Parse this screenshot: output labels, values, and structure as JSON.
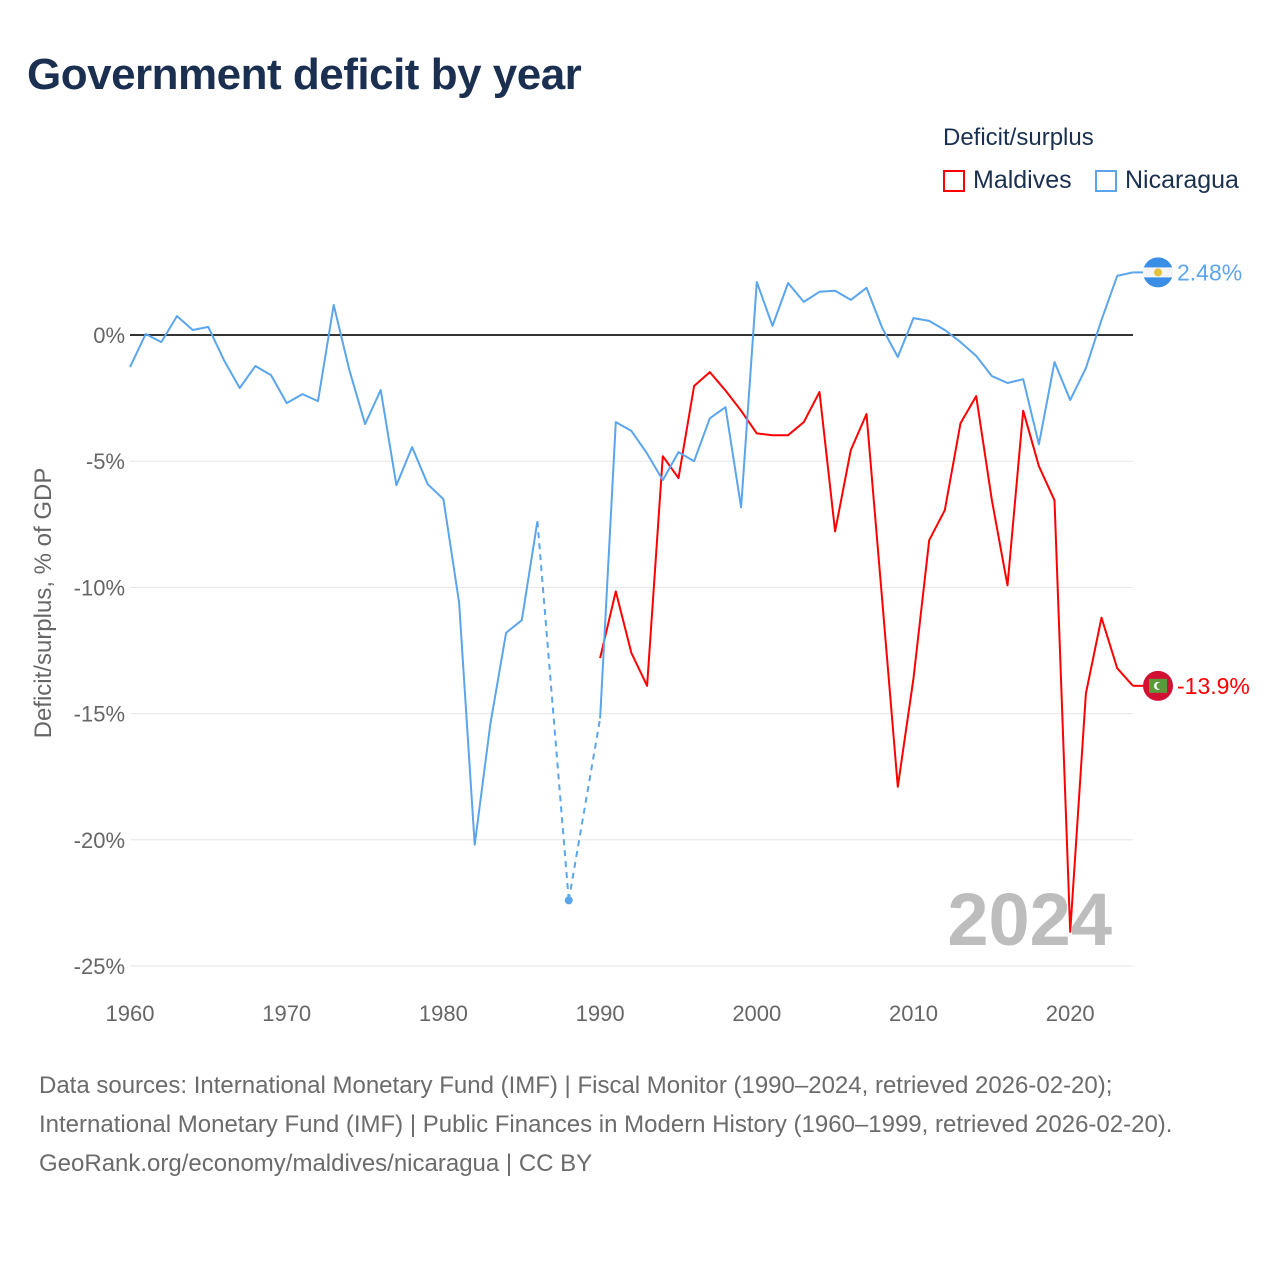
{
  "chart_data": {
    "type": "line",
    "title": "Government deficit by year",
    "ylabel": "Deficit/surplus, % of GDP",
    "xlabel": "",
    "legend_title": "Deficit/surplus",
    "legend_position": "top-right",
    "xlim": [
      1960,
      2024
    ],
    "ylim": [
      -25,
      3
    ],
    "x_ticks": [
      1960,
      1970,
      1980,
      1990,
      2000,
      2010,
      2020
    ],
    "x_tick_labels": [
      "1960",
      "1970",
      "1980",
      "1990",
      "2000",
      "2010",
      "2020"
    ],
    "y_ticks": [
      0,
      -5,
      -10,
      -15,
      -20,
      -25
    ],
    "y_tick_labels": [
      "0%",
      "-5%",
      "-10%",
      "-15%",
      "-20%",
      "-25%"
    ],
    "grid": true,
    "year_watermark": "2024",
    "series": [
      {
        "name": "Maldives",
        "color": "#ff0000",
        "end_label": "-13.9%",
        "x": [
          1990,
          1991,
          1992,
          1993,
          1994,
          1995,
          1996,
          1997,
          1998,
          1999,
          2000,
          2001,
          2002,
          2003,
          2004,
          2005,
          2006,
          2007,
          2008,
          2009,
          2010,
          2011,
          2012,
          2013,
          2014,
          2015,
          2016,
          2017,
          2018,
          2019,
          2020,
          2021,
          2022,
          2023,
          2024
        ],
        "values": [
          -12.8,
          -10.16,
          -12.6,
          -13.9,
          -4.8,
          -5.67,
          -2.02,
          -1.47,
          -2.2,
          -3.0,
          -3.9,
          -3.97,
          -3.97,
          -3.45,
          -2.26,
          -7.78,
          -4.56,
          -3.13,
          -10.5,
          -17.9,
          -13.6,
          -8.13,
          -6.94,
          -3.5,
          -2.42,
          -6.55,
          -9.92,
          -3.0,
          -5.2,
          -6.55,
          -23.65,
          -14.2,
          -11.2,
          -13.2,
          -13.9
        ]
      },
      {
        "name": "Nicaragua",
        "color": "#5aa5ec",
        "end_label": "2.48%",
        "x": [
          1960,
          1961,
          1962,
          1963,
          1964,
          1965,
          1966,
          1967,
          1968,
          1969,
          1970,
          1971,
          1972,
          1973,
          1974,
          1975,
          1976,
          1977,
          1978,
          1979,
          1980,
          1981,
          1982,
          1983,
          1984,
          1985,
          1986,
          1987,
          1988,
          1989,
          1990,
          1991,
          1992,
          1993,
          1994,
          1995,
          1996,
          1997,
          1998,
          1999,
          2000,
          2001,
          2002,
          2003,
          2004,
          2005,
          2006,
          2007,
          2008,
          2009,
          2010,
          2011,
          2012,
          2013,
          2014,
          2015,
          2016,
          2017,
          2018,
          2019,
          2020,
          2021,
          2022,
          2023,
          2024
        ],
        "values": [
          -1.27,
          0.04,
          -0.28,
          0.75,
          0.2,
          0.32,
          -1.0,
          -2.1,
          -1.23,
          -1.59,
          -2.7,
          -2.34,
          -2.62,
          1.19,
          -1.39,
          -3.53,
          -2.18,
          -5.95,
          -4.44,
          -5.91,
          -6.5,
          -10.6,
          -20.2,
          -15.4,
          -11.8,
          -11.3,
          -7.38,
          null,
          -22.4,
          null,
          -15.2,
          -3.45,
          -3.8,
          -4.7,
          -5.75,
          -4.64,
          -5.0,
          -3.3,
          -2.86,
          -6.83,
          2.1,
          0.36,
          2.06,
          1.31,
          1.71,
          1.75,
          1.39,
          1.87,
          0.28,
          -0.87,
          0.67,
          0.56,
          0.2,
          -0.28,
          -0.83,
          -1.63,
          -1.9,
          -1.75,
          -4.33,
          -1.07,
          -2.58,
          -1.31,
          0.6,
          2.34,
          2.48
        ]
      }
    ]
  },
  "footer": {
    "sources": "Data sources: International Monetary Fund (IMF) | Fiscal Monitor (1990–2024, retrieved 2026-02-20); International Monetary Fund (IMF) | Public Finances in Modern History (1960–1999, retrieved 2026-02-20).",
    "credit": "GeoRank.org/economy/maldives/nicaragua | CC BY"
  }
}
